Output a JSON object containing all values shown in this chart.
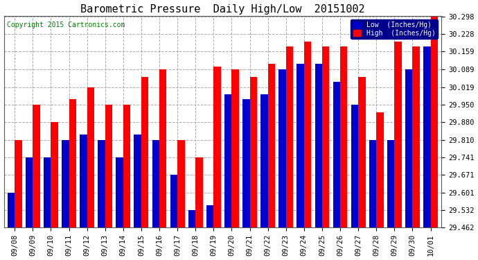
{
  "title": "Barometric Pressure  Daily High/Low  20151002",
  "copyright": "Copyright 2015 Cartronics.com",
  "legend_low": "Low  (Inches/Hg)",
  "legend_high": "High  (Inches/Hg)",
  "dates": [
    "09/08",
    "09/09",
    "09/10",
    "09/11",
    "09/12",
    "09/13",
    "09/14",
    "09/15",
    "09/16",
    "09/17",
    "09/18",
    "09/19",
    "09/20",
    "09/21",
    "09/22",
    "09/23",
    "09/24",
    "09/25",
    "09/26",
    "09/27",
    "09/28",
    "09/29",
    "09/30",
    "10/01"
  ],
  "low_values": [
    29.601,
    29.741,
    29.741,
    29.81,
    29.83,
    29.81,
    29.741,
    29.83,
    29.81,
    29.671,
    29.532,
    29.55,
    29.99,
    29.97,
    29.99,
    30.089,
    30.11,
    30.11,
    30.04,
    29.95,
    29.81,
    29.81,
    30.089,
    30.18
  ],
  "high_values": [
    29.81,
    29.95,
    29.88,
    29.97,
    30.019,
    29.95,
    29.95,
    30.06,
    30.089,
    29.81,
    29.741,
    30.1,
    30.089,
    30.06,
    30.11,
    30.18,
    30.2,
    30.18,
    30.18,
    30.06,
    29.92,
    30.2,
    30.18,
    30.298
  ],
  "ylim_min": 29.462,
  "ylim_max": 30.298,
  "yticks": [
    29.462,
    29.532,
    29.601,
    29.671,
    29.741,
    29.81,
    29.88,
    29.95,
    30.019,
    30.089,
    30.159,
    30.228,
    30.298
  ],
  "bg_color": "#ffffff",
  "plot_bg": "#ffffff",
  "grid_color": "#aaaaaa",
  "low_color": "#0000cc",
  "high_color": "#ff0000",
  "title_fontsize": 11,
  "tick_fontsize": 7.5,
  "copyright_fontsize": 7
}
